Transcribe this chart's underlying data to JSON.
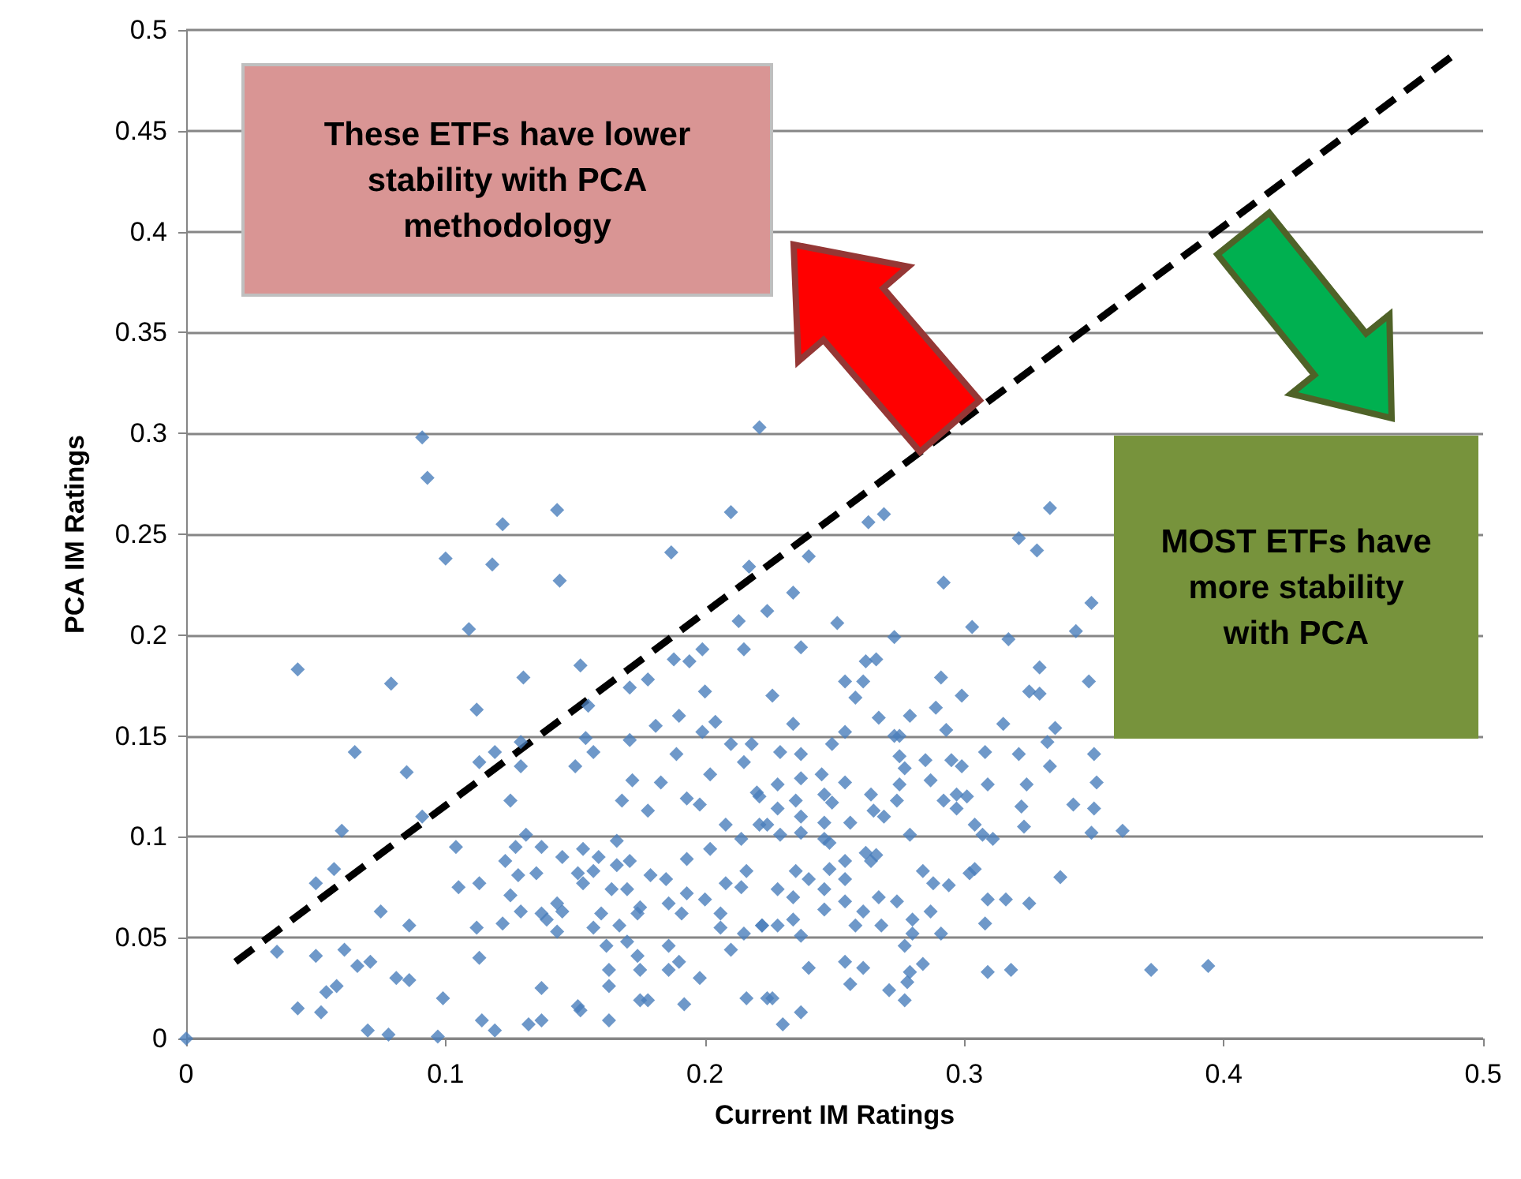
{
  "chart_data": {
    "type": "scatter",
    "xlabel": "Current IM Ratings",
    "ylabel": "PCA IM Ratings",
    "xlim": [
      0,
      0.5
    ],
    "xticks": [
      0,
      0.1,
      0.2,
      0.3,
      0.4,
      0.5
    ],
    "ylim": [
      0,
      0.5
    ],
    "yticks": [
      0,
      0.05,
      0.1,
      0.15,
      0.2,
      0.25,
      0.3,
      0.35,
      0.4,
      0.45,
      0.5
    ],
    "grid": "y",
    "marker": "diamond",
    "annotations": [
      "These ETFs have lower stability with PCA methodology",
      "MOST ETFs have more stability with PCA"
    ],
    "series": [
      {
        "color": "#4a7ebb",
        "x": [
          0.091,
          0.093,
          0.1,
          0.109,
          0.043,
          0.079,
          0.065,
          0.085,
          0.091,
          0.06,
          0.104,
          0.057,
          0.05,
          0.105,
          0.075,
          0.086,
          0.035,
          0.05,
          0.061,
          0.066,
          0.071,
          0.081,
          0.086,
          0.058,
          0.054,
          0.043,
          0.052,
          0.099,
          0.07,
          0.078,
          0.097,
          0,
          0.221,
          0.143,
          0.122,
          0.21,
          0.118,
          0.144,
          0.187,
          0.217,
          0.213,
          0.215,
          0.199,
          0.188,
          0.194,
          0.152,
          0.13,
          0.178,
          0.171,
          0.2,
          0.112,
          0.155,
          0.19,
          0.181,
          0.204,
          0.199,
          0.154,
          0.171,
          0.129,
          0.157,
          0.119,
          0.113,
          0.129,
          0.15,
          0.189,
          0.21,
          0.218,
          0.125,
          0.172,
          0.183,
          0.168,
          0.178,
          0.193,
          0.198,
          0.202,
          0.215,
          0.22,
          0.208,
          0.221,
          0.131,
          0.127,
          0.166,
          0.137,
          0.145,
          0.153,
          0.202,
          0.214,
          0.123,
          0.159,
          0.171,
          0.193,
          0.128,
          0.135,
          0.151,
          0.157,
          0.166,
          0.179,
          0.185,
          0.216,
          0.113,
          0.153,
          0.208,
          0.214,
          0.164,
          0.17,
          0.125,
          0.193,
          0.143,
          0.145,
          0.175,
          0.186,
          0.2,
          0.129,
          0.137,
          0.16,
          0.174,
          0.191,
          0.206,
          0.122,
          0.139,
          0.157,
          0.167,
          0.222,
          0.112,
          0.143,
          0.206,
          0.215,
          0.162,
          0.17,
          0.186,
          0.21,
          0.113,
          0.174,
          0.19,
          0.163,
          0.175,
          0.186,
          0.198,
          0.163,
          0.137,
          0.175,
          0.178,
          0.192,
          0.216,
          0.151,
          0.152,
          0.114,
          0.119,
          0.132,
          0.137,
          0.163,
          0.224,
          0.333,
          0.269,
          0.263,
          0.321,
          0.328,
          0.24,
          0.292,
          0.234,
          0.224,
          0.349,
          0.251,
          0.303,
          0.343,
          0.273,
          0.317,
          0.237,
          0.262,
          0.266,
          0.329,
          0.254,
          0.261,
          0.291,
          0.348,
          0.258,
          0.299,
          0.226,
          0.325,
          0.329,
          0.289,
          0.267,
          0.279,
          0.315,
          0.234,
          0.254,
          0.293,
          0.335,
          0.332,
          0.273,
          0.275,
          0.249,
          0.308,
          0.321,
          0.35,
          0.229,
          0.237,
          0.275,
          0.285,
          0.295,
          0.299,
          0.333,
          0.277,
          0.245,
          0.254,
          0.237,
          0.287,
          0.309,
          0.324,
          0.351,
          0.228,
          0.275,
          0.264,
          0.246,
          0.297,
          0.301,
          0.221,
          0.235,
          0.249,
          0.274,
          0.292,
          0.228,
          0.322,
          0.342,
          0.35,
          0.265,
          0.297,
          0.269,
          0.237,
          0.224,
          0.246,
          0.256,
          0.304,
          0.237,
          0.323,
          0.229,
          0.279,
          0.307,
          0.311,
          0.349,
          0.361,
          0.246,
          0.248,
          0.262,
          0.266,
          0.254,
          0.264,
          0.235,
          0.248,
          0.284,
          0.302,
          0.304,
          0.337,
          0.24,
          0.254,
          0.288,
          0.294,
          0.228,
          0.246,
          0.234,
          0.254,
          0.267,
          0.274,
          0.309,
          0.316,
          0.325,
          0.246,
          0.261,
          0.287,
          0.222,
          0.228,
          0.234,
          0.258,
          0.268,
          0.28,
          0.308,
          0.237,
          0.28,
          0.291,
          0.277,
          0.24,
          0.254,
          0.261,
          0.284,
          0.309,
          0.318,
          0.372,
          0.256,
          0.279,
          0.278,
          0.271,
          0.226,
          0.277,
          0.237,
          0.23,
          0.394
        ],
        "values": [
          0.298,
          0.278,
          0.238,
          0.203,
          0.183,
          0.176,
          0.142,
          0.132,
          0.11,
          0.103,
          0.095,
          0.084,
          0.077,
          0.075,
          0.063,
          0.056,
          0.043,
          0.041,
          0.044,
          0.036,
          0.038,
          0.03,
          0.029,
          0.026,
          0.023,
          0.015,
          0.013,
          0.02,
          0.004,
          0.002,
          0.001,
          0,
          0.303,
          0.262,
          0.255,
          0.261,
          0.235,
          0.227,
          0.241,
          0.234,
          0.207,
          0.193,
          0.193,
          0.188,
          0.187,
          0.185,
          0.179,
          0.178,
          0.174,
          0.172,
          0.163,
          0.165,
          0.16,
          0.155,
          0.157,
          0.152,
          0.149,
          0.148,
          0.147,
          0.142,
          0.142,
          0.137,
          0.135,
          0.135,
          0.141,
          0.146,
          0.146,
          0.118,
          0.128,
          0.127,
          0.118,
          0.113,
          0.119,
          0.116,
          0.131,
          0.137,
          0.122,
          0.106,
          0.106,
          0.101,
          0.095,
          0.098,
          0.095,
          0.09,
          0.094,
          0.094,
          0.099,
          0.088,
          0.09,
          0.088,
          0.089,
          0.081,
          0.082,
          0.082,
          0.083,
          0.086,
          0.081,
          0.079,
          0.083,
          0.077,
          0.077,
          0.077,
          0.075,
          0.074,
          0.074,
          0.071,
          0.072,
          0.067,
          0.063,
          0.065,
          0.067,
          0.069,
          0.063,
          0.062,
          0.062,
          0.062,
          0.062,
          0.062,
          0.057,
          0.059,
          0.055,
          0.056,
          0.056,
          0.055,
          0.053,
          0.055,
          0.052,
          0.046,
          0.048,
          0.046,
          0.044,
          0.04,
          0.041,
          0.038,
          0.034,
          0.034,
          0.034,
          0.03,
          0.026,
          0.025,
          0.019,
          0.019,
          0.017,
          0.02,
          0.016,
          0.014,
          0.009,
          0.004,
          0.007,
          0.009,
          0.009,
          0.02,
          0.263,
          0.26,
          0.256,
          0.248,
          0.242,
          0.239,
          0.226,
          0.221,
          0.212,
          0.216,
          0.206,
          0.204,
          0.202,
          0.199,
          0.198,
          0.194,
          0.187,
          0.188,
          0.184,
          0.177,
          0.177,
          0.179,
          0.177,
          0.169,
          0.17,
          0.17,
          0.172,
          0.171,
          0.164,
          0.159,
          0.16,
          0.156,
          0.156,
          0.152,
          0.153,
          0.154,
          0.147,
          0.15,
          0.15,
          0.146,
          0.142,
          0.141,
          0.141,
          0.142,
          0.141,
          0.14,
          0.138,
          0.138,
          0.135,
          0.135,
          0.134,
          0.131,
          0.127,
          0.129,
          0.128,
          0.126,
          0.126,
          0.127,
          0.126,
          0.126,
          0.121,
          0.121,
          0.121,
          0.12,
          0.12,
          0.118,
          0.117,
          0.118,
          0.118,
          0.114,
          0.115,
          0.116,
          0.114,
          0.113,
          0.114,
          0.11,
          0.11,
          0.106,
          0.107,
          0.107,
          0.106,
          0.102,
          0.105,
          0.101,
          0.101,
          0.101,
          0.099,
          0.102,
          0.103,
          0.099,
          0.097,
          0.092,
          0.091,
          0.088,
          0.088,
          0.083,
          0.084,
          0.083,
          0.082,
          0.084,
          0.08,
          0.079,
          0.079,
          0.077,
          0.076,
          0.074,
          0.074,
          0.07,
          0.068,
          0.07,
          0.068,
          0.069,
          0.069,
          0.067,
          0.064,
          0.063,
          0.063,
          0.056,
          0.056,
          0.059,
          0.056,
          0.056,
          0.059,
          0.057,
          0.051,
          0.052,
          0.052,
          0.046,
          0.035,
          0.038,
          0.035,
          0.037,
          0.033,
          0.034,
          0.034,
          0.027,
          0.033,
          0.028,
          0.024,
          0.02,
          0.019,
          0.013,
          0.007,
          0.036
        ]
      },
      {
        "type": "line",
        "color": "#000000",
        "line_style": "dashed",
        "marker": "none",
        "x": [
          0.019,
          0.488
        ],
        "values": [
          0.038,
          0.487
        ]
      }
    ]
  }
}
